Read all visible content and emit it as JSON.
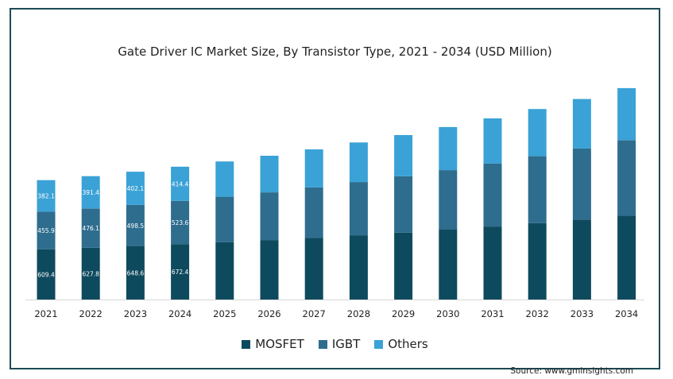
{
  "chart_data": {
    "type": "bar",
    "stacked": true,
    "title": "Gate Driver IC Market Size, By Transistor Type, 2021 - 2034 (USD Million)",
    "categories": [
      "2021",
      "2022",
      "2023",
      "2024",
      "2025",
      "2026",
      "2027",
      "2028",
      "2029",
      "2030",
      "2031",
      "2032",
      "2033",
      "2034"
    ],
    "series": [
      {
        "name": "MOSFET",
        "color": "#0e4a5e",
        "values": [
          609.4,
          627.8,
          648.6,
          672.4,
          696,
          721,
          749,
          779,
          811,
          847,
          885,
          926,
          970,
          1017
        ]
      },
      {
        "name": "IGBT",
        "color": "#2e6d8e",
        "values": [
          455.9,
          476.1,
          498.5,
          523.6,
          550,
          578,
          610,
          645,
          682,
          722,
          765,
          811,
          861,
          915
        ]
      },
      {
        "name": "Others",
        "color": "#3aa2d6",
        "values": [
          382.1,
          391.4,
          402.1,
          414.4,
          428,
          444,
          461,
          480,
          500,
          522,
          546,
          572,
          600,
          630
        ]
      }
    ],
    "data_labels": [
      {
        "category": "2021",
        "values": [
          "609.4",
          "455.9",
          "382.1"
        ]
      },
      {
        "category": "2022",
        "values": [
          "627.8",
          "476.1",
          "391.4"
        ]
      },
      {
        "category": "2023",
        "values": [
          "648.6",
          "498.5",
          "402.1"
        ]
      },
      {
        "category": "2024",
        "values": [
          "672.4",
          "523.6",
          "414.4"
        ]
      }
    ],
    "ylim": [
      0,
      2600
    ],
    "grid": false,
    "y_axis_visible": false,
    "legend_position": "bottom-center"
  },
  "source": "Source: www.gminsights.com"
}
